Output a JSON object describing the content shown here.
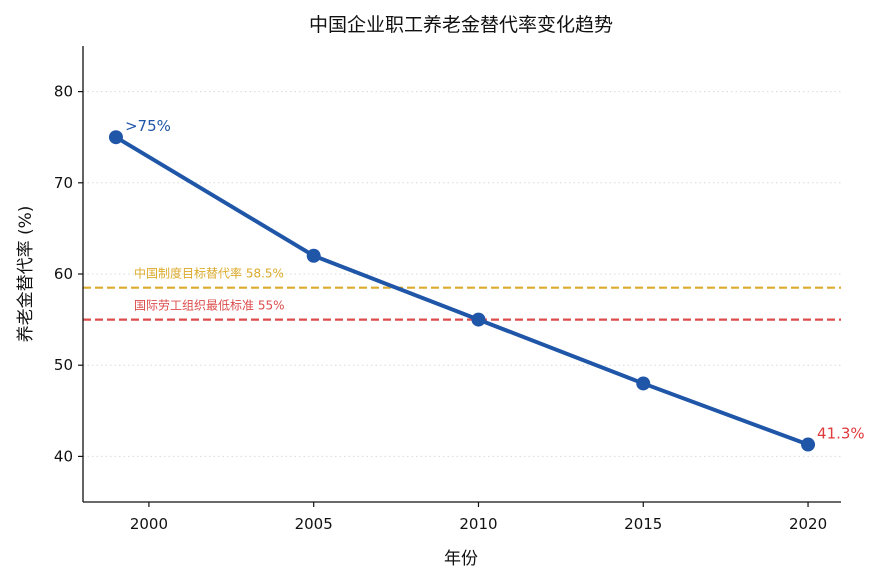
{
  "chart_data": {
    "type": "line",
    "title": "中国企业职工养老金替代率变化趋势",
    "xlabel": "年份",
    "ylabel": "养老金替代率 (%)",
    "xlim": [
      1998,
      2021
    ],
    "ylim": [
      35,
      85
    ],
    "x_ticks": [
      2000,
      2005,
      2010,
      2015,
      2020
    ],
    "y_ticks": [
      40,
      50,
      60,
      70,
      80
    ],
    "grid": "horizontal-dotted",
    "series": [
      {
        "x": [
          1999,
          2005,
          2010,
          2015,
          2020
        ],
        "y": [
          75,
          62,
          55,
          48,
          41.3
        ],
        "color": "#1f56a8"
      }
    ],
    "reference_lines": [
      {
        "y": 58.5,
        "label": "中国制度目标替代率 58.5%",
        "color": "#dcab2b"
      },
      {
        "y": 55,
        "label": "国际劳工组织最低标准 55%",
        "color": "#dc4c4c"
      }
    ],
    "annotations": [
      {
        "x": 1999,
        "y": 75,
        "text": ">75%",
        "color": "#1f56a8"
      },
      {
        "x": 2020,
        "y": 41.3,
        "text": "41.3%",
        "color": "#e0393b"
      }
    ]
  }
}
